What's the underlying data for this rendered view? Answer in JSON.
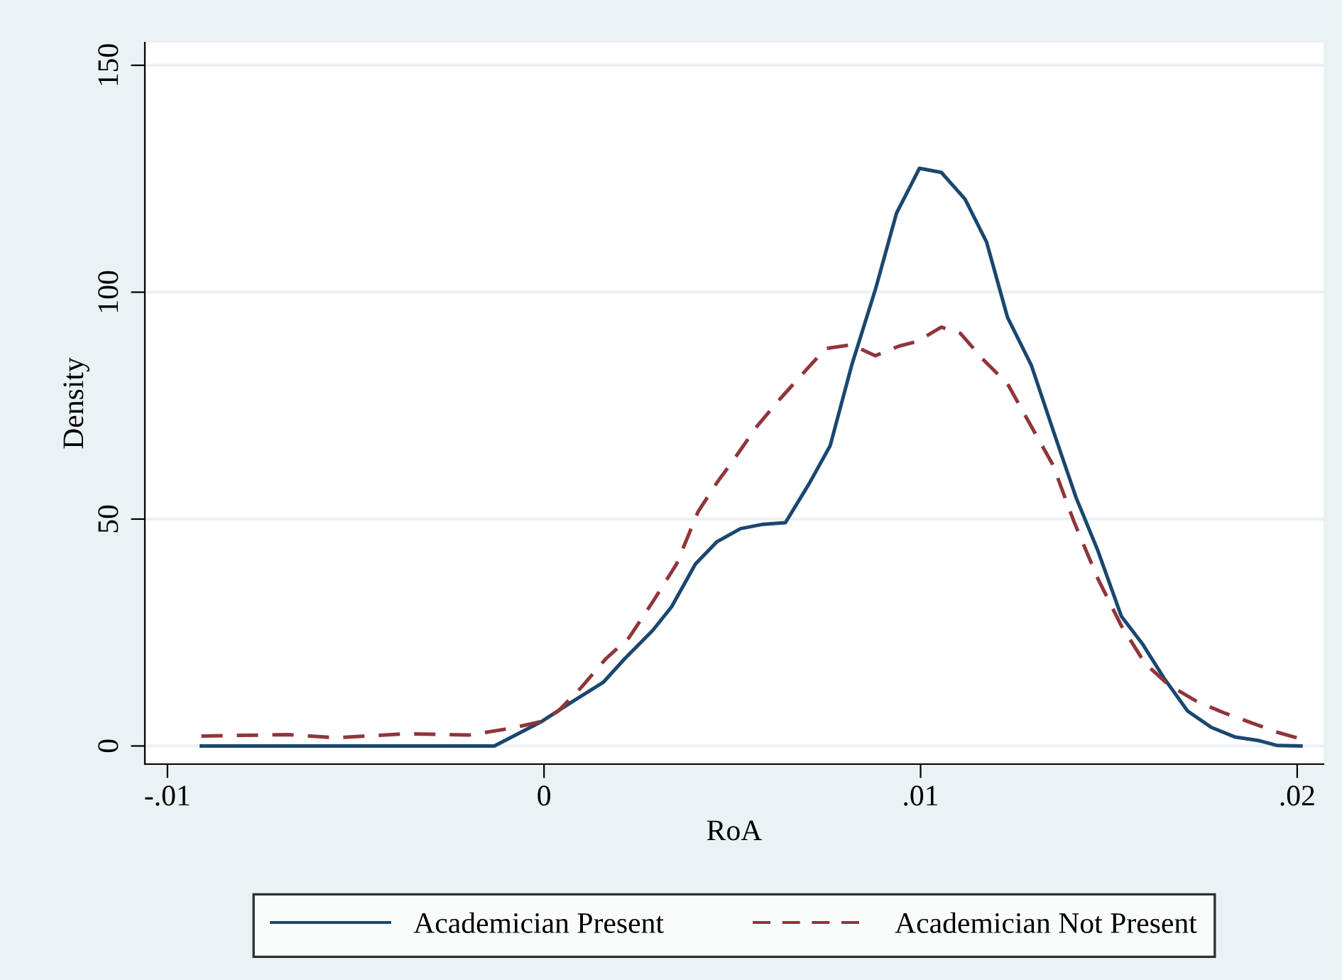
{
  "chart_data": {
    "type": "line",
    "xlabel": "RoA",
    "ylabel": "Density",
    "xlim": [
      -0.0106,
      0.0207
    ],
    "ylim": [
      -4,
      155
    ],
    "xticks": [
      {
        "value": -0.01,
        "label": "-.01"
      },
      {
        "value": 0,
        "label": "0"
      },
      {
        "value": 0.01,
        "label": ".01"
      },
      {
        "value": 0.02,
        "label": ".02"
      }
    ],
    "yticks": [
      0,
      50,
      100,
      150
    ],
    "grid": "y",
    "legend": "bottom",
    "series": [
      {
        "name": "Academician Present",
        "color": "#1a476f",
        "line_style": "solid",
        "x": [
          -0.0091,
          -0.00132,
          -6e-05,
          0.00057,
          0.00157,
          0.00214,
          0.00289,
          0.00339,
          0.00402,
          0.00459,
          0.00522,
          0.00578,
          0.00641,
          0.00704,
          0.0076,
          0.00817,
          0.0088,
          0.00936,
          0.00997,
          0.01055,
          0.01118,
          0.01175,
          0.01231,
          0.01294,
          0.01357,
          0.01413,
          0.0147,
          0.01533,
          0.0159,
          0.01646,
          0.01709,
          0.01772,
          0.01834,
          0.01897,
          0.01948,
          0.0201
        ],
        "values": [
          0,
          0,
          5.4,
          8.8,
          14,
          19.2,
          25.5,
          30.7,
          40.1,
          45,
          47.9,
          48.8,
          49.2,
          57.8,
          66.2,
          83.9,
          100.6,
          117.4,
          127.3,
          126.4,
          120.5,
          111.1,
          94.4,
          83.9,
          68.3,
          54.7,
          43.2,
          28.6,
          22.4,
          15,
          7.7,
          4.1,
          2,
          1.2,
          0.1,
          0
        ]
      },
      {
        "name": "Academician Not Present",
        "color": "#90353b",
        "line_style": "dashed",
        "x": [
          -0.0091,
          -0.00678,
          -0.00553,
          -0.00364,
          -0.002,
          -0.00088,
          -6e-05,
          0.00038,
          0.001,
          0.00164,
          0.00226,
          0.00289,
          0.00352,
          0.00409,
          0.00459,
          0.00503,
          0.00565,
          0.00628,
          0.00691,
          0.00748,
          0.00817,
          0.0088,
          0.00942,
          0.00993,
          0.01055,
          0.01106,
          0.01168,
          0.01231,
          0.01294,
          0.01351,
          0.01407,
          0.0147,
          0.01533,
          0.01596,
          0.01658,
          0.01734,
          0.01809,
          0.01885,
          0.01948,
          0.02004
        ],
        "values": [
          2.2,
          2.5,
          1.8,
          2.7,
          2.4,
          3.9,
          5.4,
          7.7,
          13,
          19.2,
          23.9,
          31.8,
          40.1,
          51.6,
          58,
          63,
          70.4,
          76.6,
          82.4,
          87.6,
          88.4,
          86,
          88.1,
          89.2,
          92.3,
          90.9,
          85,
          79.8,
          70.4,
          62,
          49.5,
          37,
          26.5,
          18.2,
          13.5,
          9.8,
          7.2,
          4.9,
          3,
          1.7
        ]
      }
    ]
  }
}
